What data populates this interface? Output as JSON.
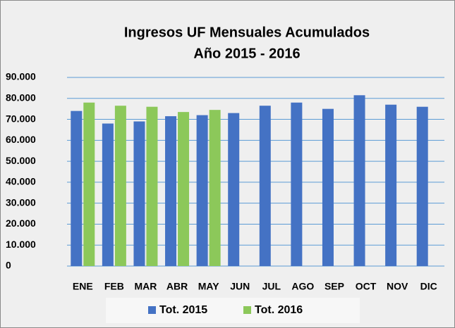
{
  "chart_data": {
    "type": "bar",
    "title": [
      "Ingresos UF Mensuales Acumulados",
      "Año 2015 - 2016"
    ],
    "categories": [
      "ENE",
      "FEB",
      "MAR",
      "ABR",
      "MAY",
      "JUN",
      "JUL",
      "AGO",
      "SEP",
      "OCT",
      "NOV",
      "DIC"
    ],
    "series": [
      {
        "name": "Tot. 2015",
        "color": "#4472c4",
        "values": [
          74000,
          68000,
          69000,
          71500,
          72000,
          73000,
          76500,
          78000,
          75000,
          81500,
          77000,
          76000
        ]
      },
      {
        "name": "Tot. 2016",
        "color": "#8cc85a",
        "values": [
          78000,
          76500,
          76000,
          73500,
          74500,
          null,
          null,
          null,
          null,
          null,
          null,
          null
        ]
      }
    ],
    "ylim": [
      0,
      90000
    ],
    "yticks": [
      0,
      {
        "value": 10000,
        "label": "10.000"
      },
      {
        "value": 20000,
        "label": "20.000"
      },
      {
        "value": 30000,
        "label": "30.000"
      },
      {
        "value": 40000,
        "label": "40.000"
      },
      {
        "value": 50000,
        "label": "50.000"
      },
      {
        "value": 60000,
        "label": "60.000"
      },
      {
        "value": 70000,
        "label": "70.000"
      },
      {
        "value": 80000,
        "label": "80.000"
      },
      {
        "value": 90000,
        "label": "90.000"
      }
    ],
    "grid": true,
    "legend": "bottom"
  }
}
